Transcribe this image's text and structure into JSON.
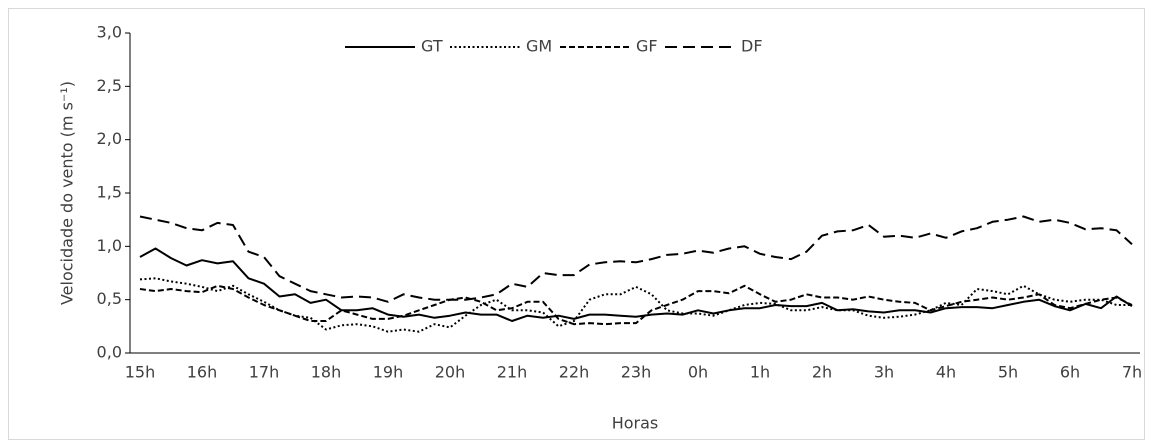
{
  "chart_data": {
    "type": "line",
    "ylabel": "Velocidade do vento (m s⁻¹)",
    "xlabel": "Horas",
    "categories": [
      "15h",
      null,
      null,
      null,
      "16h",
      null,
      null,
      null,
      "17h",
      null,
      null,
      null,
      "18h",
      null,
      null,
      null,
      "19h",
      null,
      null,
      null,
      "20h",
      null,
      null,
      null,
      "21h",
      null,
      null,
      null,
      "22h",
      null,
      null,
      null,
      "23h",
      null,
      null,
      null,
      "0h",
      null,
      null,
      null,
      "1h",
      null,
      null,
      null,
      "2h",
      null,
      null,
      null,
      "3h",
      null,
      null,
      null,
      "4h",
      null,
      null,
      null,
      "5h",
      null,
      null,
      null,
      "6h",
      null,
      null,
      null,
      "7h"
    ],
    "series": [
      {
        "name": "GT",
        "color": "#000000",
        "dash": "none",
        "values": [
          0.9,
          0.98,
          0.89,
          0.82,
          0.87,
          0.84,
          0.86,
          0.7,
          0.65,
          0.53,
          0.55,
          0.47,
          0.5,
          0.4,
          0.4,
          0.42,
          0.36,
          0.34,
          0.36,
          0.33,
          0.35,
          0.38,
          0.36,
          0.36,
          0.3,
          0.35,
          0.33,
          0.35,
          0.32,
          0.36,
          0.36,
          0.35,
          0.34,
          0.36,
          0.37,
          0.36,
          0.4,
          0.37,
          0.4,
          0.42,
          0.42,
          0.45,
          0.44,
          0.44,
          0.47,
          0.4,
          0.41,
          0.39,
          0.38,
          0.4,
          0.4,
          0.38,
          0.42,
          0.43,
          0.43,
          0.42,
          0.45,
          0.48,
          0.5,
          0.44,
          0.4,
          0.46,
          0.42,
          0.53,
          0.44
        ]
      },
      {
        "name": "GM",
        "color": "#000000",
        "dash": "2,2.5",
        "values": [
          0.69,
          0.7,
          0.67,
          0.65,
          0.62,
          0.58,
          0.63,
          0.55,
          0.48,
          0.4,
          0.35,
          0.33,
          0.22,
          0.26,
          0.27,
          0.25,
          0.2,
          0.22,
          0.2,
          0.27,
          0.24,
          0.35,
          0.45,
          0.5,
          0.4,
          0.4,
          0.38,
          0.25,
          0.3,
          0.5,
          0.55,
          0.55,
          0.62,
          0.55,
          0.4,
          0.37,
          0.37,
          0.35,
          0.4,
          0.45,
          0.47,
          0.46,
          0.4,
          0.4,
          0.43,
          0.4,
          0.4,
          0.35,
          0.33,
          0.34,
          0.36,
          0.4,
          0.47,
          0.45,
          0.6,
          0.58,
          0.55,
          0.63,
          0.55,
          0.5,
          0.48,
          0.5,
          0.5,
          0.45,
          0.45
        ]
      },
      {
        "name": "GF",
        "color": "#000000",
        "dash": "6,3",
        "values": [
          0.6,
          0.58,
          0.6,
          0.58,
          0.57,
          0.63,
          0.6,
          0.52,
          0.45,
          0.4,
          0.35,
          0.3,
          0.3,
          0.4,
          0.36,
          0.32,
          0.32,
          0.35,
          0.4,
          0.45,
          0.5,
          0.52,
          0.48,
          0.4,
          0.42,
          0.48,
          0.48,
          0.32,
          0.27,
          0.28,
          0.27,
          0.28,
          0.28,
          0.4,
          0.45,
          0.5,
          0.58,
          0.58,
          0.56,
          0.63,
          0.55,
          0.48,
          0.5,
          0.55,
          0.52,
          0.52,
          0.5,
          0.53,
          0.5,
          0.48,
          0.47,
          0.4,
          0.44,
          0.48,
          0.5,
          0.52,
          0.5,
          0.52,
          0.55,
          0.45,
          0.42,
          0.46,
          0.5,
          0.52,
          0.45
        ]
      },
      {
        "name": "DF",
        "color": "#000000",
        "dash": "12,6",
        "values": [
          1.28,
          1.25,
          1.22,
          1.17,
          1.15,
          1.22,
          1.2,
          0.95,
          0.9,
          0.72,
          0.65,
          0.58,
          0.55,
          0.52,
          0.53,
          0.52,
          0.48,
          0.55,
          0.52,
          0.5,
          0.5,
          0.5,
          0.52,
          0.55,
          0.65,
          0.62,
          0.75,
          0.73,
          0.73,
          0.83,
          0.85,
          0.86,
          0.85,
          0.88,
          0.92,
          0.93,
          0.96,
          0.94,
          0.98,
          1.0,
          0.93,
          0.9,
          0.88,
          0.95,
          1.1,
          1.14,
          1.15,
          1.2,
          1.09,
          1.1,
          1.08,
          1.12,
          1.08,
          1.14,
          1.17,
          1.23,
          1.25,
          1.28,
          1.23,
          1.25,
          1.22,
          1.16,
          1.17,
          1.15,
          1.02
        ]
      }
    ],
    "ylim": [
      0,
      3
    ],
    "yticks": [
      {
        "value": 0,
        "label": "0,0"
      },
      {
        "value": 0.5,
        "label": "0,5"
      },
      {
        "value": 1,
        "label": "1,0"
      },
      {
        "value": 1.5,
        "label": "1,5"
      },
      {
        "value": 2,
        "label": "2,0"
      },
      {
        "value": 2.5,
        "label": "2,5"
      },
      {
        "value": 3,
        "label": "3,0"
      }
    ],
    "grid": false,
    "legend": "top"
  }
}
